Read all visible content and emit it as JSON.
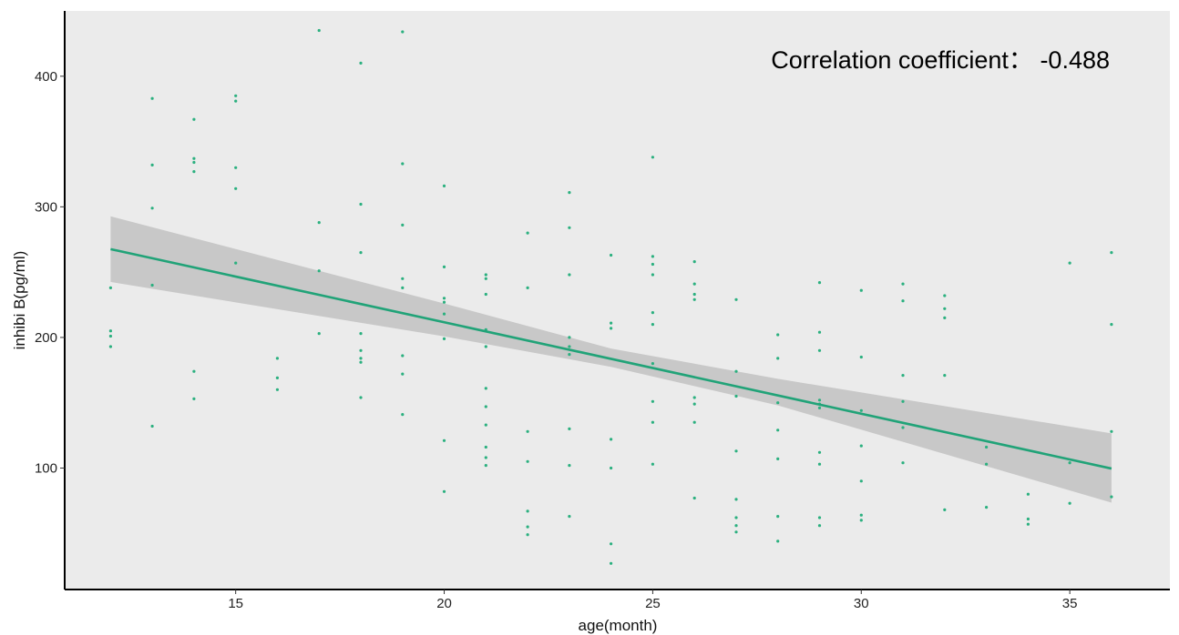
{
  "chart_data": {
    "type": "scatter",
    "title": "",
    "xlabel": "age(month)",
    "ylabel": "inhibi B(pg/ml)",
    "xlim": [
      10.9,
      37.4
    ],
    "ylim": [
      7,
      450
    ],
    "x_ticks": [
      15,
      20,
      25,
      30,
      35
    ],
    "y_ticks": [
      100,
      200,
      300,
      400
    ],
    "grid": false,
    "annotation": "Correlation coefficient： -0.488",
    "colors": {
      "background": "#ebebeb",
      "point": "#2bb07f",
      "fit_line": "#21a378",
      "confidence_band": "#c8c8c8",
      "axis": "#000000"
    },
    "points": [
      {
        "x": 12,
        "y": 238
      },
      {
        "x": 12,
        "y": 205
      },
      {
        "x": 12,
        "y": 201
      },
      {
        "x": 12,
        "y": 193
      },
      {
        "x": 13,
        "y": 383
      },
      {
        "x": 13,
        "y": 332
      },
      {
        "x": 13,
        "y": 299
      },
      {
        "x": 13,
        "y": 240
      },
      {
        "x": 13,
        "y": 132
      },
      {
        "x": 14,
        "y": 367
      },
      {
        "x": 14,
        "y": 337
      },
      {
        "x": 14,
        "y": 334
      },
      {
        "x": 14,
        "y": 327
      },
      {
        "x": 14,
        "y": 174
      },
      {
        "x": 14,
        "y": 153
      },
      {
        "x": 15,
        "y": 385
      },
      {
        "x": 15,
        "y": 381
      },
      {
        "x": 15,
        "y": 330
      },
      {
        "x": 15,
        "y": 314
      },
      {
        "x": 15,
        "y": 257
      },
      {
        "x": 16,
        "y": 184
      },
      {
        "x": 16,
        "y": 169
      },
      {
        "x": 16,
        "y": 160
      },
      {
        "x": 17,
        "y": 435
      },
      {
        "x": 17,
        "y": 288
      },
      {
        "x": 17,
        "y": 251
      },
      {
        "x": 17,
        "y": 203
      },
      {
        "x": 18,
        "y": 410
      },
      {
        "x": 18,
        "y": 302
      },
      {
        "x": 18,
        "y": 265
      },
      {
        "x": 18,
        "y": 203
      },
      {
        "x": 18,
        "y": 190
      },
      {
        "x": 18,
        "y": 184
      },
      {
        "x": 18,
        "y": 181
      },
      {
        "x": 18,
        "y": 154
      },
      {
        "x": 19,
        "y": 434
      },
      {
        "x": 19,
        "y": 333
      },
      {
        "x": 19,
        "y": 286
      },
      {
        "x": 19,
        "y": 245
      },
      {
        "x": 19,
        "y": 238
      },
      {
        "x": 19,
        "y": 186
      },
      {
        "x": 19,
        "y": 172
      },
      {
        "x": 19,
        "y": 141
      },
      {
        "x": 20,
        "y": 316
      },
      {
        "x": 20,
        "y": 254
      },
      {
        "x": 20,
        "y": 230
      },
      {
        "x": 20,
        "y": 227
      },
      {
        "x": 20,
        "y": 218
      },
      {
        "x": 20,
        "y": 199
      },
      {
        "x": 20,
        "y": 121
      },
      {
        "x": 20,
        "y": 82
      },
      {
        "x": 21,
        "y": 248
      },
      {
        "x": 21,
        "y": 245
      },
      {
        "x": 21,
        "y": 233
      },
      {
        "x": 21,
        "y": 206
      },
      {
        "x": 21,
        "y": 193
      },
      {
        "x": 21,
        "y": 161
      },
      {
        "x": 21,
        "y": 147
      },
      {
        "x": 21,
        "y": 133
      },
      {
        "x": 21,
        "y": 116
      },
      {
        "x": 21,
        "y": 108
      },
      {
        "x": 21,
        "y": 102
      },
      {
        "x": 22,
        "y": 280
      },
      {
        "x": 22,
        "y": 238
      },
      {
        "x": 22,
        "y": 128
      },
      {
        "x": 22,
        "y": 105
      },
      {
        "x": 22,
        "y": 67
      },
      {
        "x": 22,
        "y": 55
      },
      {
        "x": 22,
        "y": 49
      },
      {
        "x": 23,
        "y": 311
      },
      {
        "x": 23,
        "y": 284
      },
      {
        "x": 23,
        "y": 248
      },
      {
        "x": 23,
        "y": 200
      },
      {
        "x": 23,
        "y": 193
      },
      {
        "x": 23,
        "y": 187
      },
      {
        "x": 23,
        "y": 130
      },
      {
        "x": 23,
        "y": 102
      },
      {
        "x": 23,
        "y": 63
      },
      {
        "x": 24,
        "y": 263
      },
      {
        "x": 24,
        "y": 211
      },
      {
        "x": 24,
        "y": 207
      },
      {
        "x": 24,
        "y": 122
      },
      {
        "x": 24,
        "y": 100
      },
      {
        "x": 24,
        "y": 42
      },
      {
        "x": 24,
        "y": 27
      },
      {
        "x": 25,
        "y": 338
      },
      {
        "x": 25,
        "y": 262
      },
      {
        "x": 25,
        "y": 256
      },
      {
        "x": 25,
        "y": 248
      },
      {
        "x": 25,
        "y": 219
      },
      {
        "x": 25,
        "y": 210
      },
      {
        "x": 25,
        "y": 180
      },
      {
        "x": 25,
        "y": 151
      },
      {
        "x": 25,
        "y": 135
      },
      {
        "x": 25,
        "y": 103
      },
      {
        "x": 26,
        "y": 258
      },
      {
        "x": 26,
        "y": 241
      },
      {
        "x": 26,
        "y": 233
      },
      {
        "x": 26,
        "y": 229
      },
      {
        "x": 26,
        "y": 154
      },
      {
        "x": 26,
        "y": 149
      },
      {
        "x": 26,
        "y": 135
      },
      {
        "x": 26,
        "y": 77
      },
      {
        "x": 27,
        "y": 229
      },
      {
        "x": 27,
        "y": 174
      },
      {
        "x": 27,
        "y": 155
      },
      {
        "x": 27,
        "y": 113
      },
      {
        "x": 27,
        "y": 76
      },
      {
        "x": 27,
        "y": 62
      },
      {
        "x": 27,
        "y": 56
      },
      {
        "x": 27,
        "y": 51
      },
      {
        "x": 28,
        "y": 202
      },
      {
        "x": 28,
        "y": 184
      },
      {
        "x": 28,
        "y": 150
      },
      {
        "x": 28,
        "y": 129
      },
      {
        "x": 28,
        "y": 107
      },
      {
        "x": 28,
        "y": 63
      },
      {
        "x": 28,
        "y": 44
      },
      {
        "x": 29,
        "y": 242
      },
      {
        "x": 29,
        "y": 204
      },
      {
        "x": 29,
        "y": 190
      },
      {
        "x": 29,
        "y": 152
      },
      {
        "x": 29,
        "y": 149
      },
      {
        "x": 29,
        "y": 146
      },
      {
        "x": 29,
        "y": 112
      },
      {
        "x": 29,
        "y": 103
      },
      {
        "x": 29,
        "y": 62
      },
      {
        "x": 29,
        "y": 56
      },
      {
        "x": 30,
        "y": 236
      },
      {
        "x": 30,
        "y": 185
      },
      {
        "x": 30,
        "y": 144
      },
      {
        "x": 30,
        "y": 117
      },
      {
        "x": 30,
        "y": 90
      },
      {
        "x": 30,
        "y": 64
      },
      {
        "x": 30,
        "y": 60
      },
      {
        "x": 31,
        "y": 241
      },
      {
        "x": 31,
        "y": 228
      },
      {
        "x": 31,
        "y": 171
      },
      {
        "x": 31,
        "y": 151
      },
      {
        "x": 31,
        "y": 131
      },
      {
        "x": 31,
        "y": 104
      },
      {
        "x": 32,
        "y": 232
      },
      {
        "x": 32,
        "y": 222
      },
      {
        "x": 32,
        "y": 215
      },
      {
        "x": 32,
        "y": 171
      },
      {
        "x": 32,
        "y": 68
      },
      {
        "x": 33,
        "y": 116
      },
      {
        "x": 33,
        "y": 103
      },
      {
        "x": 33,
        "y": 70
      },
      {
        "x": 34,
        "y": 80
      },
      {
        "x": 34,
        "y": 61
      },
      {
        "x": 34,
        "y": 57
      },
      {
        "x": 35,
        "y": 257
      },
      {
        "x": 35,
        "y": 104
      },
      {
        "x": 35,
        "y": 73
      },
      {
        "x": 36,
        "y": 265
      },
      {
        "x": 36,
        "y": 210
      },
      {
        "x": 36,
        "y": 128
      },
      {
        "x": 36,
        "y": 78
      }
    ],
    "fit_line": {
      "x": [
        12,
        36
      ],
      "y": [
        267.6,
        99.6
      ]
    },
    "confidence_band": {
      "x": [
        12,
        20,
        24,
        28,
        36
      ],
      "lower": [
        242.5,
        200.8,
        177.5,
        148.0,
        73.5
      ],
      "upper": [
        292.7,
        226.0,
        191.5,
        168.3,
        126.5
      ]
    }
  }
}
